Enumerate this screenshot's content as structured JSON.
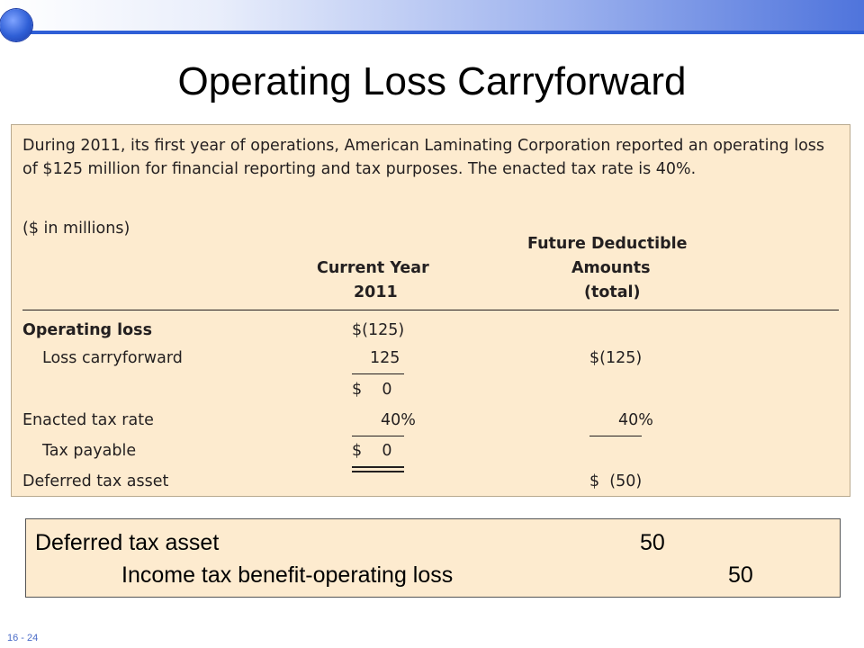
{
  "slide": {
    "title": "Operating Loss Carryforward",
    "number": "16 - 24"
  },
  "exhibit": {
    "intro": "During 2011, its first year of operations, American Laminating Corporation reported an operating loss of $125 million for financial reporting and tax purposes. The enacted tax rate is 40%.",
    "units": "($ in millions)",
    "col_current": [
      "Current Year",
      "2011"
    ],
    "col_future": [
      "Future Deductible",
      "Amounts",
      "(total)"
    ],
    "rows": {
      "operating_loss": {
        "label": "Operating loss",
        "current": "$(125)",
        "future": ""
      },
      "loss_carryforward": {
        "label": "Loss carryforward",
        "current": "125",
        "future": "$(125)"
      },
      "subtotal": {
        "label": "",
        "current": "$    0",
        "future": ""
      },
      "enacted_rate": {
        "label": "Enacted tax rate",
        "current": "40%",
        "future": "40%"
      },
      "tax_payable": {
        "label": "Tax payable",
        "current": "$    0",
        "future": ""
      },
      "deferred_asset": {
        "label": "Deferred tax asset",
        "current": "",
        "future": "$  (50)"
      }
    }
  },
  "journal_entry": {
    "debit_account": "Deferred tax asset",
    "debit_amount": "50",
    "credit_account": "Income tax benefit-operating loss",
    "credit_amount": "50"
  },
  "colors": {
    "panel_bg": "#fdebcf",
    "banner_accent": "#2f5fd6"
  }
}
